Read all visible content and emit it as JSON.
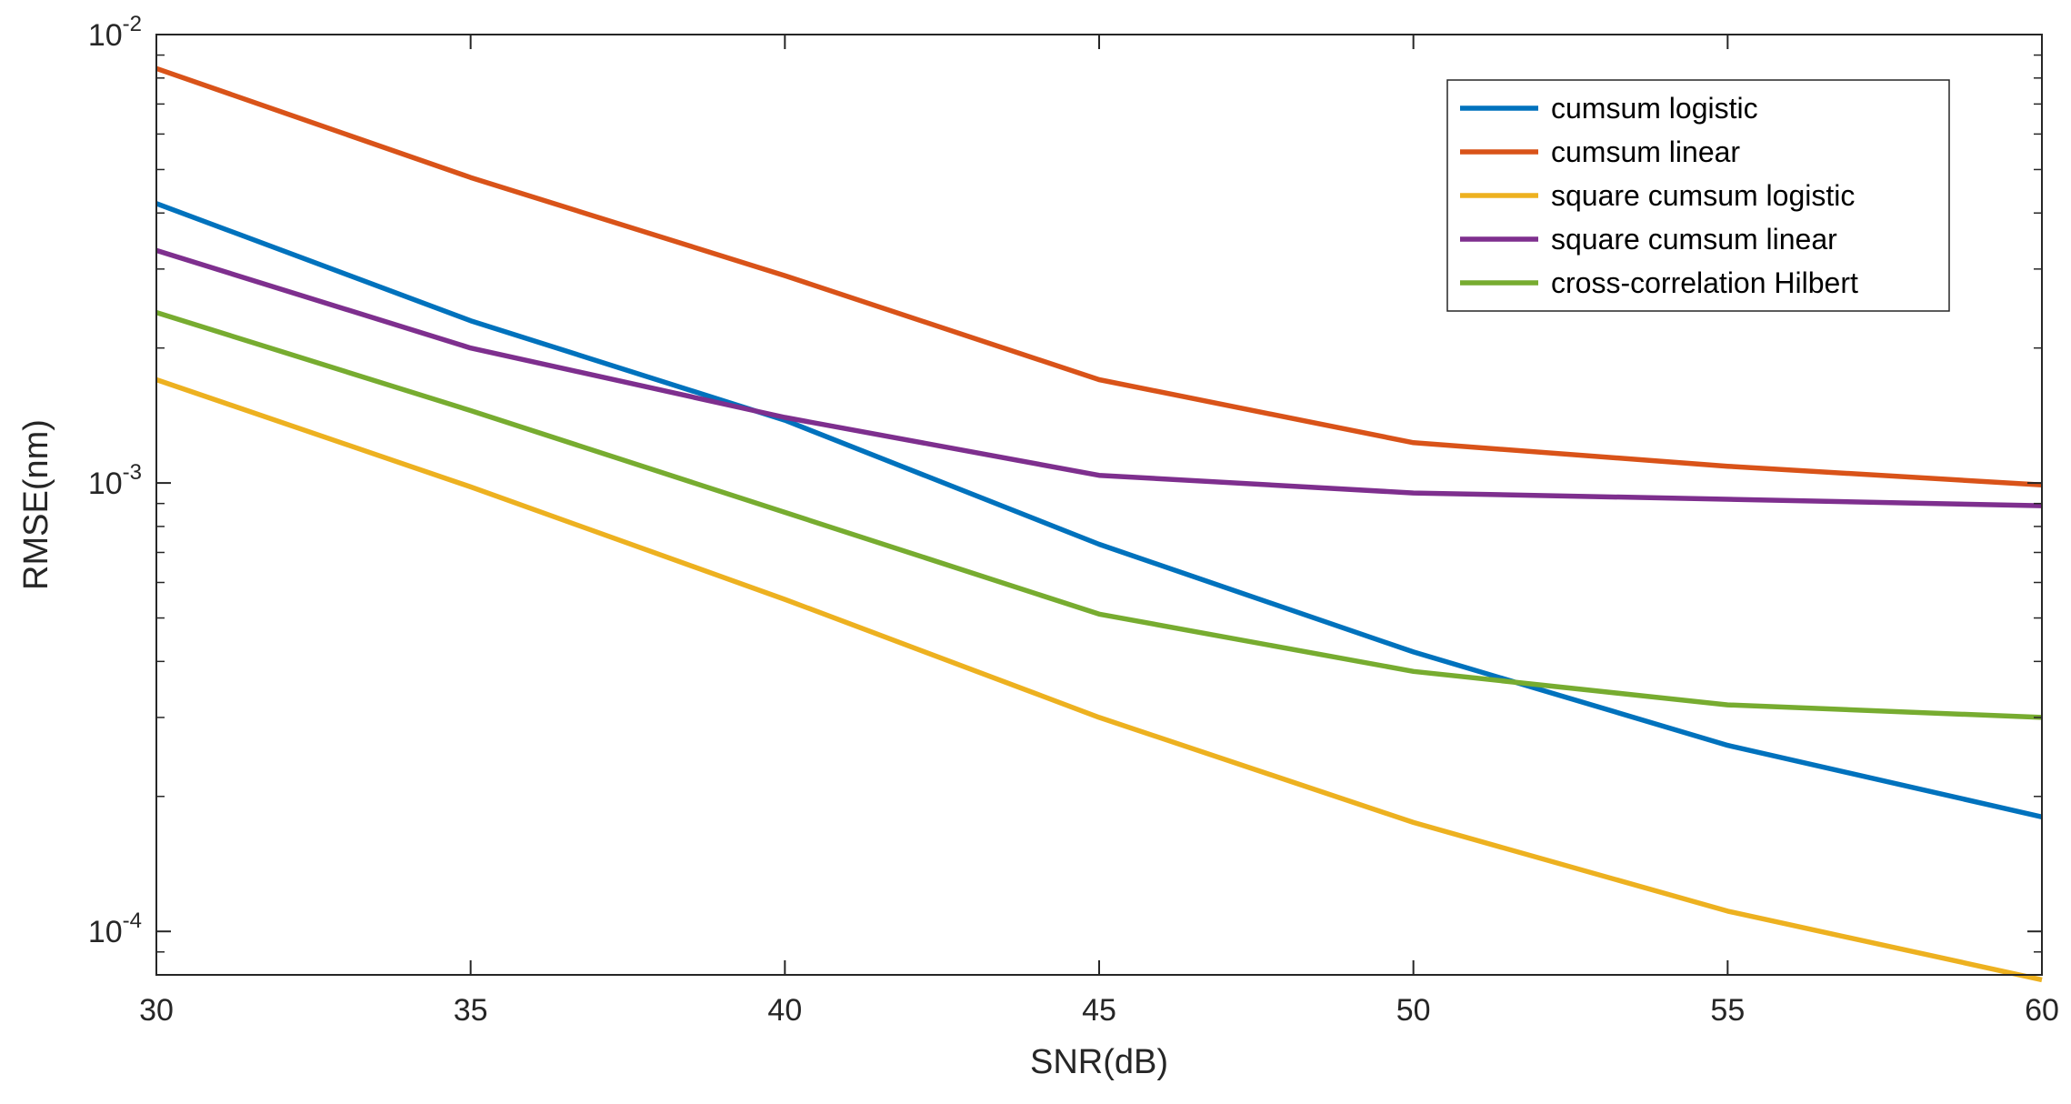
{
  "chart_data": {
    "type": "line",
    "title": "",
    "xlabel": "SNR(dB)",
    "ylabel": "RMSE(nm)",
    "yscale": "log",
    "x": [
      30,
      35,
      40,
      45,
      50,
      55,
      60
    ],
    "xlim": [
      30,
      60
    ],
    "ylim": [
      8e-05,
      0.01
    ],
    "xticks": [
      30,
      35,
      40,
      45,
      50,
      55,
      60
    ],
    "xtick_labels": [
      "30",
      "35",
      "40",
      "45",
      "50",
      "55",
      "60"
    ],
    "yticks": [
      {
        "value": 0.0001,
        "base": "10",
        "exp": "-4"
      },
      {
        "value": 0.001,
        "base": "10",
        "exp": "-3"
      },
      {
        "value": 0.01,
        "base": "10",
        "exp": "-2"
      }
    ],
    "grid": false,
    "legend_position": "top-right",
    "series": [
      {
        "name": "cumsum logistic",
        "color": "#0072BD",
        "values": [
          0.0042,
          0.0023,
          0.00138,
          0.00073,
          0.00042,
          0.00026,
          0.00018
        ]
      },
      {
        "name": "cumsum linear",
        "color": "#D95319",
        "values": [
          0.0084,
          0.0048,
          0.0029,
          0.0017,
          0.00123,
          0.00109,
          0.00099
        ]
      },
      {
        "name": "square cumsum logistic",
        "color": "#EDB120",
        "values": [
          0.0017,
          0.00098,
          0.00055,
          0.0003,
          0.000175,
          0.000111,
          7.8e-05
        ]
      },
      {
        "name": "square cumsum linear",
        "color": "#7E2F8E",
        "values": [
          0.0033,
          0.002,
          0.0014,
          0.00104,
          0.00095,
          0.00092,
          0.00089
        ]
      },
      {
        "name": "cross-correlation Hilbert",
        "color": "#77AC30",
        "values": [
          0.0024,
          0.00145,
          0.00086,
          0.00051,
          0.00038,
          0.00032,
          0.0003
        ]
      }
    ]
  }
}
